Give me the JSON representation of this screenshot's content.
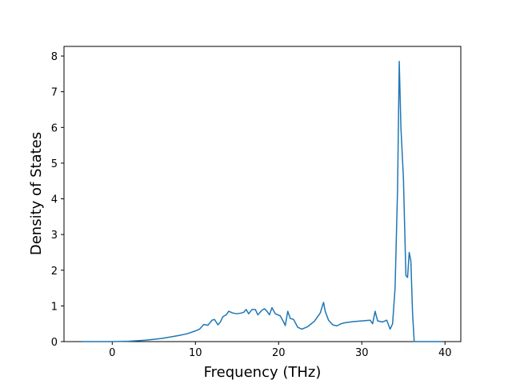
{
  "chart_data": {
    "type": "line",
    "x_label": "Frequency (THz)",
    "y_label": "Density of States",
    "x": [
      -3.6,
      0,
      2,
      4,
      6,
      8,
      9,
      10,
      10.5,
      11,
      11.5,
      12,
      12.3,
      12.7,
      13,
      13.3,
      13.7,
      14,
      14.5,
      15,
      15.5,
      15.8,
      16.1,
      16.4,
      16.8,
      17.2,
      17.5,
      18,
      18.3,
      18.6,
      18.9,
      19.2,
      19.6,
      20.2,
      20.6,
      20.8,
      21.1,
      21.4,
      21.8,
      22.3,
      22.8,
      23.5,
      24.3,
      25,
      25.4,
      25.6,
      26,
      26.5,
      27,
      27.5,
      28,
      29,
      30,
      31,
      31.3,
      31.6,
      31.9,
      32.5,
      33,
      33.4,
      33.7,
      34,
      34.3,
      34.5,
      34.7,
      35,
      35.3,
      35.5,
      35.7,
      35.9,
      36.1,
      36.3,
      38,
      39.7
    ],
    "series": [
      {
        "color": "#1f77b4",
        "values": [
          0,
          0,
          0.01,
          0.04,
          0.09,
          0.17,
          0.22,
          0.3,
          0.35,
          0.48,
          0.46,
          0.6,
          0.62,
          0.47,
          0.55,
          0.7,
          0.75,
          0.85,
          0.8,
          0.78,
          0.8,
          0.82,
          0.9,
          0.78,
          0.9,
          0.9,
          0.75,
          0.88,
          0.92,
          0.85,
          0.75,
          0.95,
          0.78,
          0.72,
          0.55,
          0.45,
          0.85,
          0.65,
          0.62,
          0.4,
          0.35,
          0.42,
          0.57,
          0.8,
          1.1,
          0.85,
          0.6,
          0.47,
          0.44,
          0.5,
          0.53,
          0.56,
          0.58,
          0.6,
          0.5,
          0.85,
          0.58,
          0.55,
          0.6,
          0.35,
          0.5,
          1.5,
          4.3,
          7.85,
          6.0,
          4.6,
          1.85,
          1.8,
          2.5,
          2.25,
          0.8,
          0,
          0,
          0
        ]
      }
    ],
    "xlim": [
      -5.8,
      41.9
    ],
    "xticks": [
      0,
      10,
      20,
      30,
      40
    ],
    "ylim": [
      0,
      8.27
    ],
    "yticks": [
      0,
      1,
      2,
      3,
      4,
      5,
      6,
      7,
      8
    ]
  }
}
